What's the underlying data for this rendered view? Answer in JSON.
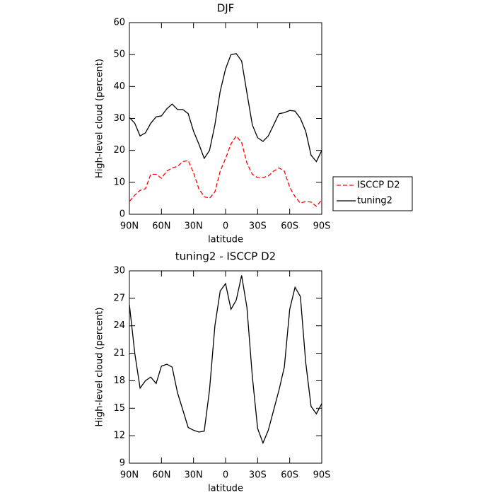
{
  "chart_data": [
    {
      "type": "line",
      "title": "DJF",
      "xlabel": "latitude",
      "ylabel": "High-level cloud (percent)",
      "x": [
        90,
        85,
        80,
        75,
        70,
        65,
        60,
        55,
        50,
        45,
        40,
        35,
        30,
        25,
        20,
        15,
        10,
        5,
        0,
        -5,
        -10,
        -15,
        -20,
        -25,
        -30,
        -35,
        -40,
        -45,
        -50,
        -55,
        -60,
        -65,
        -70,
        -75,
        -80,
        -85,
        -90
      ],
      "xlim": [
        90,
        -90
      ],
      "xticks": [
        {
          "value": 90,
          "label": "90N"
        },
        {
          "value": 60,
          "label": "60N"
        },
        {
          "value": 30,
          "label": "30N"
        },
        0,
        {
          "value": -30,
          "label": "30S"
        },
        {
          "value": -60,
          "label": "60S"
        },
        {
          "value": -90,
          "label": "90S"
        }
      ],
      "ylim": [
        0,
        60
      ],
      "yticks": [
        0,
        10,
        20,
        30,
        40,
        50,
        60
      ],
      "legend": "outside-right",
      "series": [
        {
          "name": "ISCCP D2",
          "color": "#ff0000",
          "linestyle": "dashed",
          "values": [
            4,
            6,
            7.5,
            8,
            12.5,
            12.5,
            11.3,
            13.5,
            14.5,
            15,
            16.5,
            16.8,
            13,
            8,
            5.5,
            5,
            7,
            13.5,
            17.5,
            22,
            24.5,
            22.5,
            16,
            12.5,
            11.5,
            11.5,
            12,
            13.5,
            14.5,
            13.5,
            8.5,
            5.5,
            3.5,
            4,
            3.8,
            2.5,
            4.5
          ]
        },
        {
          "name": "tuning2",
          "color": "#000000",
          "linestyle": "solid",
          "values": [
            30.3,
            28.5,
            24.5,
            25.5,
            28.5,
            30.5,
            30.8,
            33,
            34.5,
            32.8,
            32.8,
            31.5,
            26,
            22,
            17.5,
            20,
            28,
            38.5,
            45.5,
            50,
            50.3,
            48,
            38,
            28,
            24,
            22.8,
            24.5,
            28,
            31.5,
            31.8,
            32.5,
            32.3,
            30,
            26,
            18.5,
            16.5,
            20
          ]
        }
      ]
    },
    {
      "type": "line",
      "title": "tuning2 - ISCCP D2",
      "xlabel": "latitude",
      "ylabel": "High-level cloud (percent)",
      "x": [
        90,
        85,
        80,
        75,
        70,
        65,
        60,
        55,
        50,
        45,
        40,
        35,
        30,
        25,
        20,
        15,
        10,
        5,
        0,
        -5,
        -10,
        -15,
        -20,
        -25,
        -30,
        -35,
        -40,
        -45,
        -50,
        -55,
        -60,
        -65,
        -70,
        -75,
        -80,
        -85,
        -90
      ],
      "xlim": [
        90,
        -90
      ],
      "xticks": [
        {
          "value": 90,
          "label": "90N"
        },
        {
          "value": 60,
          "label": "60N"
        },
        {
          "value": 30,
          "label": "30N"
        },
        0,
        {
          "value": -30,
          "label": "30S"
        },
        {
          "value": -60,
          "label": "60S"
        },
        {
          "value": -90,
          "label": "90S"
        }
      ],
      "ylim": [
        9,
        30
      ],
      "yticks": [
        9,
        12,
        15,
        18,
        21,
        24,
        27,
        30
      ],
      "series": [
        {
          "color": "#000000",
          "linestyle": "solid",
          "values": [
            26.3,
            21,
            17.2,
            18,
            18.4,
            17.7,
            19.6,
            19.8,
            19.5,
            16.7,
            14.8,
            12.9,
            12.6,
            12.4,
            12.5,
            17,
            24,
            27.8,
            28.6,
            25.8,
            26.8,
            29.5,
            26,
            18.5,
            12.8,
            11.2,
            12.6,
            14.8,
            17,
            19.5,
            25.8,
            28.2,
            27.2,
            20,
            15.2,
            14.4,
            15.5
          ]
        }
      ]
    }
  ]
}
